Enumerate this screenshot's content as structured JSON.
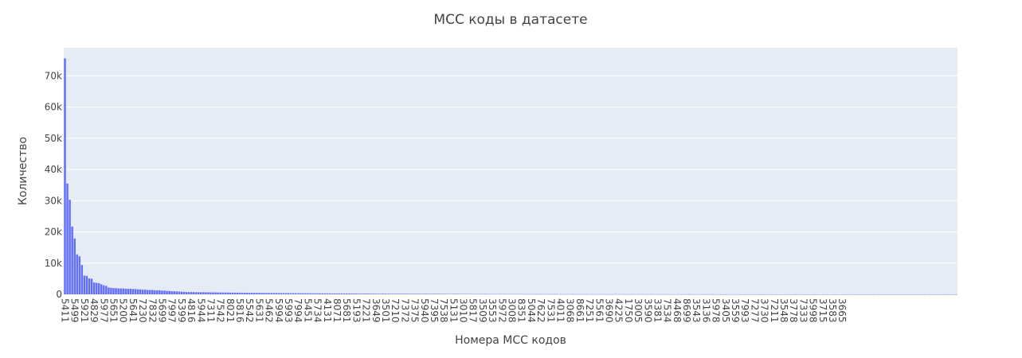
{
  "chart_data": {
    "type": "bar",
    "title": "MCC коды в датасете",
    "xlabel": "Номера МСС кодов",
    "ylabel": "Количество",
    "ylim": [
      0,
      79000
    ],
    "yticks": [
      0,
      10000,
      20000,
      30000,
      40000,
      50000,
      60000,
      70000
    ],
    "ytick_labels": [
      "0",
      "10k",
      "20k",
      "30k",
      "40k",
      "50k",
      "60k",
      "70k"
    ],
    "bar_color": "#636efa",
    "plot_bg": "#e5ecf6",
    "gridlines": true,
    "legend": false,
    "num_bars": 368,
    "tick_labels": [
      "5411",
      "5499",
      "5921",
      "4829",
      "5977",
      "5651",
      "5200",
      "5641",
      "7230",
      "7832",
      "5699",
      "7997",
      "5399",
      "4816",
      "5944",
      "7311",
      "7542",
      "8021",
      "5816",
      "5542",
      "5631",
      "5462",
      "5994",
      "5993",
      "7994",
      "5451",
      "5734",
      "4131",
      "8071",
      "5681",
      "5193",
      "7221",
      "3649",
      "3501",
      "7210",
      "7372",
      "7375",
      "5940",
      "7395",
      "7538",
      "5131",
      "3010",
      "5817",
      "3509",
      "3553",
      "5972",
      "3008",
      "8351",
      "5044",
      "7622",
      "7531",
      "4011",
      "3068",
      "8661",
      "7251",
      "5561",
      "3690",
      "4225",
      "1750",
      "3005",
      "3590",
      "3381",
      "7534",
      "4468",
      "8699",
      "3543",
      "3136",
      "5978",
      "3405",
      "3559",
      "7993",
      "7277",
      "3730",
      "7211",
      "3548",
      "3778",
      "7333",
      "5998",
      "3715",
      "3583",
      "3665"
    ],
    "values_head": [
      75600,
      35500,
      30300,
      21700,
      17900,
      12800,
      12200,
      9400,
      6000,
      5900,
      5100,
      5000,
      3800,
      3700,
      3600,
      3200,
      2900,
      2700,
      2200,
      2100,
      2000,
      2000,
      1900,
      1900,
      1900,
      1800,
      1800,
      1800,
      1700,
      1700,
      1600,
      1600,
      1500,
      1500,
      1400,
      1400,
      1400,
      1300,
      1300,
      1300,
      1200,
      1200,
      1100,
      1100,
      1000,
      1000,
      950,
      900,
      850,
      800
    ],
    "tail_start": 750,
    "tail_decay": 0.984
  }
}
